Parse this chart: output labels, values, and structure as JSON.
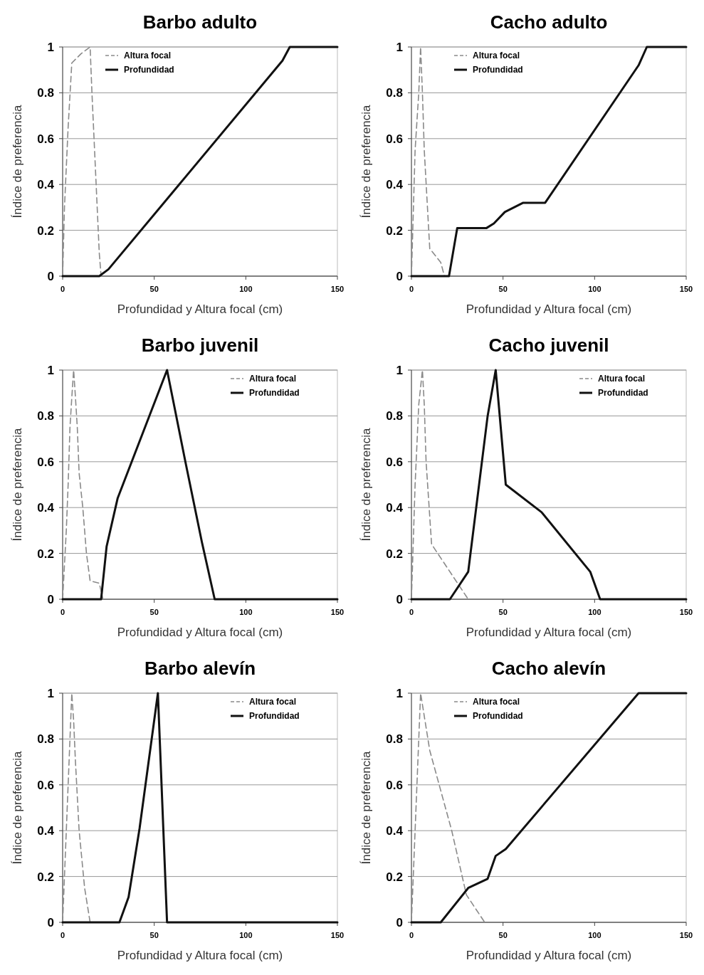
{
  "chart_data": [
    {
      "type": "line",
      "title": "Barbo adulto",
      "xlabel": "Profundidad y Altura focal (cm)",
      "ylabel": "Índice de preferencia",
      "xlim": [
        0,
        150
      ],
      "xticks": [
        0,
        50,
        100,
        150
      ],
      "ylim": [
        0,
        1
      ],
      "yticks": [
        0,
        0.2,
        0.4,
        0.6,
        0.8,
        1
      ],
      "grid": "y",
      "legend": "top left",
      "series": [
        {
          "name": "Altura focal",
          "color": "#8a8a8a",
          "line_style": "dashed",
          "x": [
            0,
            1,
            3,
            5,
            10,
            15,
            16,
            20,
            21
          ],
          "values": [
            0,
            0.3,
            0.65,
            0.93,
            0.97,
            1,
            0.8,
            0.1,
            0
          ]
        },
        {
          "name": "Profundidad",
          "color": "#111111",
          "line_style": "solid",
          "x": [
            0,
            20,
            25,
            120,
            124,
            150
          ],
          "values": [
            0,
            0,
            0.03,
            0.94,
            1,
            1
          ]
        }
      ]
    },
    {
      "type": "line",
      "title": "Cacho adulto",
      "xlabel": "Profundidad y Altura focal (cm)",
      "ylabel": "Índice de preferencia",
      "xlim": [
        0,
        150
      ],
      "xticks": [
        0,
        50,
        100,
        150
      ],
      "ylim": [
        0,
        1
      ],
      "yticks": [
        0,
        0.2,
        0.4,
        0.6,
        0.8,
        1
      ],
      "grid": "y",
      "legend": "top left",
      "series": [
        {
          "name": "Altura focal",
          "color": "#8a8a8a",
          "line_style": "dashed",
          "x": [
            0,
            2,
            4,
            5,
            6,
            7,
            10,
            16,
            18
          ],
          "values": [
            0,
            0.55,
            0.8,
            1,
            0.8,
            0.55,
            0.12,
            0.06,
            0
          ]
        },
        {
          "name": "Profundidad",
          "color": "#111111",
          "line_style": "solid",
          "x": [
            0,
            20.5,
            25,
            41,
            45,
            51,
            61,
            73,
            124,
            128.5,
            150
          ],
          "values": [
            0,
            0,
            0.21,
            0.21,
            0.23,
            0.28,
            0.32,
            0.32,
            0.92,
            1,
            1
          ]
        }
      ]
    },
    {
      "type": "line",
      "title": "Barbo juvenil",
      "xlabel": "Profundidad y Altura focal (cm)",
      "ylabel": "Índice de preferencia",
      "xlim": [
        0,
        150
      ],
      "xticks": [
        0,
        50,
        100,
        150
      ],
      "ylim": [
        0,
        1
      ],
      "yticks": [
        0,
        0.2,
        0.4,
        0.6,
        0.8,
        1
      ],
      "grid": "y",
      "legend": "top right",
      "series": [
        {
          "name": "Altura focal",
          "color": "#8a8a8a",
          "line_style": "dashed",
          "x": [
            0,
            1,
            2,
            3,
            4,
            5,
            6,
            7,
            8,
            9,
            11,
            13,
            15,
            20,
            22
          ],
          "values": [
            0,
            0.15,
            0.3,
            0.5,
            0.75,
            0.88,
            1,
            0.88,
            0.75,
            0.55,
            0.4,
            0.2,
            0.08,
            0.07,
            0
          ]
        },
        {
          "name": "Profundidad",
          "color": "#111111",
          "line_style": "solid",
          "x": [
            0,
            21,
            24,
            30,
            57,
            67,
            76,
            83,
            150
          ],
          "values": [
            0,
            0,
            0.23,
            0.44,
            1,
            0.6,
            0.25,
            0,
            0
          ]
        }
      ]
    },
    {
      "type": "line",
      "title": "Cacho juvenil",
      "xlabel": "Profundidad y Altura focal (cm)",
      "ylabel": "Índice de preferencia",
      "xlim": [
        0,
        150
      ],
      "xticks": [
        0,
        50,
        100,
        150
      ],
      "ylim": [
        0,
        1
      ],
      "yticks": [
        0,
        0.2,
        0.4,
        0.6,
        0.8,
        1
      ],
      "grid": "y",
      "legend": "top right",
      "series": [
        {
          "name": "Altura focal",
          "color": "#8a8a8a",
          "line_style": "dashed",
          "x": [
            0,
            2,
            4,
            6,
            7,
            8,
            11,
            31
          ],
          "values": [
            0,
            0.5,
            0.85,
            1,
            0.85,
            0.6,
            0.24,
            0
          ]
        },
        {
          "name": "Profundidad",
          "color": "#111111",
          "line_style": "solid",
          "x": [
            0,
            21,
            31,
            41.6,
            46,
            51.5,
            71,
            97.6,
            103,
            150
          ],
          "values": [
            0,
            0,
            0.12,
            0.8,
            1,
            0.5,
            0.38,
            0.12,
            0,
            0
          ]
        }
      ]
    },
    {
      "type": "line",
      "title": "Barbo alevín",
      "xlabel": "Profundidad y Altura focal (cm)",
      "ylabel": "Índice de preferencia",
      "xlim": [
        0,
        150
      ],
      "xticks": [
        0,
        50,
        100,
        150
      ],
      "ylim": [
        0,
        1
      ],
      "yticks": [
        0,
        0.2,
        0.4,
        0.6,
        0.8,
        1
      ],
      "grid": "y",
      "legend": "top right",
      "series": [
        {
          "name": "Altura focal",
          "color": "#8a8a8a",
          "line_style": "dashed",
          "x": [
            0,
            1,
            3,
            5,
            6,
            7,
            9,
            12,
            15
          ],
          "values": [
            0,
            0.2,
            0.6,
            1,
            0.88,
            0.7,
            0.4,
            0.15,
            0
          ]
        },
        {
          "name": "Profundidad",
          "color": "#111111",
          "line_style": "solid",
          "x": [
            0,
            31,
            36,
            42,
            52,
            57,
            150
          ],
          "values": [
            0,
            0,
            0.11,
            0.41,
            1,
            0,
            0
          ]
        }
      ]
    },
    {
      "type": "line",
      "title": "Cacho alevín",
      "xlabel": "Profundidad y Altura focal (cm)",
      "ylabel": "Índice de preferencia",
      "xlim": [
        0,
        150
      ],
      "xticks": [
        0,
        50,
        100,
        150
      ],
      "ylim": [
        0,
        1
      ],
      "yticks": [
        0,
        0.2,
        0.4,
        0.6,
        0.8,
        1
      ],
      "grid": "y",
      "legend": "top left",
      "series": [
        {
          "name": "Altura focal",
          "color": "#8a8a8a",
          "line_style": "dashed",
          "x": [
            0,
            1.4,
            5,
            10,
            22,
            30,
            40
          ],
          "values": [
            0,
            0.28,
            1,
            0.75,
            0.4,
            0.12,
            0
          ]
        },
        {
          "name": "Profundidad",
          "color": "#111111",
          "line_style": "solid",
          "x": [
            0,
            16,
            31,
            41.6,
            46,
            51.5,
            124,
            150
          ],
          "values": [
            0,
            0,
            0.15,
            0.19,
            0.29,
            0.32,
            1,
            1
          ]
        }
      ]
    }
  ]
}
